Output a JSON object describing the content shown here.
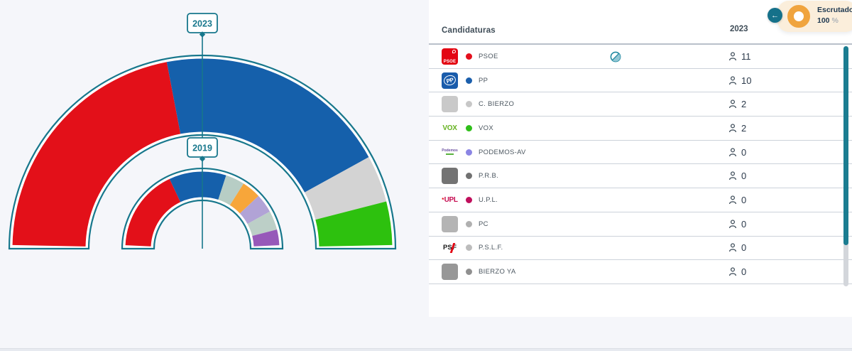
{
  "accent_teal": "#17778c",
  "header_badge": {
    "back_icon": "left-arrow",
    "label": "Escrutado",
    "value": "100",
    "unit": "%",
    "donut_color": "#f0a43e",
    "bg": "#fbeedb"
  },
  "table": {
    "header": {
      "candidaturas": "Candidaturas",
      "year": "2023"
    },
    "rows": [
      {
        "name": "PSOE",
        "seats": "11",
        "dot_color": "#e40f1c",
        "pact_icon": true,
        "logo": {
          "kind": "psoe",
          "bg": "#e30613",
          "text": "PSOE"
        }
      },
      {
        "name": "PP",
        "seats": "10",
        "dot_color": "#1b5fac",
        "pact_icon": false,
        "logo": {
          "kind": "pp",
          "bg": "#1a5cab",
          "text": "PP"
        }
      },
      {
        "name": "C. BIERZO",
        "seats": "2",
        "dot_color": "#c7c7c7",
        "pact_icon": false,
        "logo": {
          "kind": "square",
          "bg": "#c9c9c9"
        }
      },
      {
        "name": "VOX",
        "seats": "2",
        "dot_color": "#2fbf1a",
        "pact_icon": false,
        "logo": {
          "kind": "wordmark",
          "text": "VOX",
          "fg": "#66b220"
        }
      },
      {
        "name": "PODEMOS-AV",
        "seats": "0",
        "dot_color": "#8b85e4",
        "pact_icon": false,
        "logo": {
          "kind": "podemos",
          "text": "Podemos",
          "fg": "#6a4fa0"
        }
      },
      {
        "name": "P.R.B.",
        "seats": "0",
        "dot_color": "#717171",
        "pact_icon": false,
        "logo": {
          "kind": "square",
          "bg": "#737373"
        }
      },
      {
        "name": "U.P.L.",
        "seats": "0",
        "dot_color": "#c00f5c",
        "pact_icon": false,
        "logo": {
          "kind": "wordmark",
          "text": "UPL",
          "fg": "#c60c51",
          "mark": "*"
        }
      },
      {
        "name": "PC",
        "seats": "0",
        "dot_color": "#b0b0b0",
        "pact_icon": false,
        "logo": {
          "kind": "square",
          "bg": "#b4b4b4"
        }
      },
      {
        "name": "P.S.L.F.",
        "seats": "0",
        "dot_color": "#bcbcbc",
        "pact_icon": false,
        "logo": {
          "kind": "pslf",
          "text1": "PS",
          "text2": "F"
        }
      },
      {
        "name": "BIERZO YA",
        "seats": "0",
        "dot_color": "#909090",
        "pact_icon": false,
        "logo": {
          "kind": "square",
          "bg": "#979797"
        }
      }
    ]
  },
  "chart_data": {
    "type": "hemicycle",
    "total_seats_per_ring": 25,
    "outline_color": "#17778c",
    "rings": [
      {
        "year": "2023",
        "segments": [
          {
            "label": "PSOE",
            "seats": 11,
            "color": "#e31019"
          },
          {
            "label": "PP",
            "seats": 10,
            "color": "#1560ab"
          },
          {
            "label": "C. BIERZO",
            "seats": 2,
            "color": "#d3d3d3"
          },
          {
            "label": "VOX",
            "seats": 2,
            "color": "#2dc10e"
          }
        ]
      },
      {
        "year": "2019",
        "segments": [
          {
            "seats": 9,
            "color": "#e31019"
          },
          {
            "seats": 6,
            "color": "#1560ab"
          },
          {
            "seats": 2,
            "color": "#b7cdc5"
          },
          {
            "seats": 2,
            "color": "#f7a63a"
          },
          {
            "seats": 2,
            "color": "#b1a3d6"
          },
          {
            "seats": 2,
            "color": "#bccfc7"
          },
          {
            "seats": 2,
            "color": "#9759b9"
          }
        ]
      }
    ]
  }
}
